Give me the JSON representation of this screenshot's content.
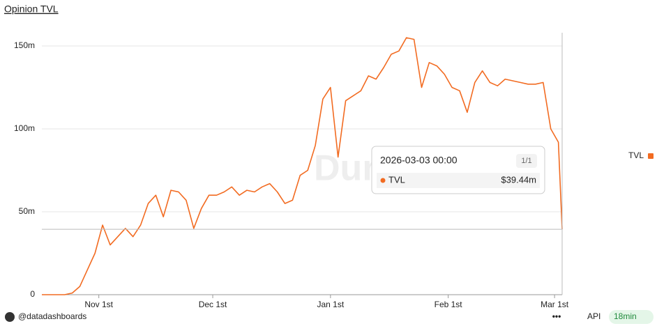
{
  "chart_data": {
    "type": "line",
    "title": "Opinion TVL",
    "watermark": "Dune",
    "x": [
      "2025-10-17",
      "2025-10-19",
      "2025-10-21",
      "2025-10-23",
      "2025-10-25",
      "2025-10-27",
      "2025-10-29",
      "2025-10-31",
      "2025-11-02",
      "2025-11-04",
      "2025-11-06",
      "2025-11-08",
      "2025-11-10",
      "2025-11-12",
      "2025-11-14",
      "2025-11-16",
      "2025-11-18",
      "2025-11-20",
      "2025-11-22",
      "2025-11-24",
      "2025-11-26",
      "2025-11-28",
      "2025-11-30",
      "2025-12-02",
      "2025-12-04",
      "2025-12-06",
      "2025-12-08",
      "2025-12-10",
      "2025-12-12",
      "2025-12-14",
      "2025-12-16",
      "2025-12-18",
      "2025-12-20",
      "2025-12-22",
      "2025-12-24",
      "2025-12-26",
      "2025-12-28",
      "2025-12-30",
      "2026-01-01",
      "2026-01-03",
      "2026-01-05",
      "2026-01-07",
      "2026-01-09",
      "2026-01-11",
      "2026-01-13",
      "2026-01-15",
      "2026-01-17",
      "2026-01-19",
      "2026-01-21",
      "2026-01-23",
      "2026-01-25",
      "2026-01-27",
      "2026-01-29",
      "2026-01-31",
      "2026-02-02",
      "2026-02-04",
      "2026-02-06",
      "2026-02-08",
      "2026-02-10",
      "2026-02-12",
      "2026-02-14",
      "2026-02-16",
      "2026-02-18",
      "2026-02-20",
      "2026-02-22",
      "2026-02-24",
      "2026-02-26",
      "2026-02-28",
      "2026-03-02",
      "2026-03-03"
    ],
    "series": [
      {
        "name": "TVL",
        "color": "#f26b21",
        "values": [
          0,
          0,
          0,
          0,
          1,
          5,
          15,
          25,
          42,
          30,
          35,
          40,
          35,
          42,
          55,
          60,
          47,
          63,
          62,
          57,
          40,
          52,
          60,
          60,
          62,
          65,
          60,
          63,
          62,
          65,
          67,
          62,
          55,
          57,
          72,
          75,
          90,
          118,
          125,
          83,
          117,
          120,
          123,
          132,
          130,
          137,
          145,
          147,
          155,
          154,
          125,
          140,
          138,
          133,
          125,
          123,
          110,
          128,
          135,
          128,
          126,
          130,
          129,
          128,
          127,
          127,
          128,
          100,
          92,
          39.44
        ]
      }
    ],
    "xlim": [
      "2025-10-17",
      "2026-03-03"
    ],
    "xticks": [
      {
        "value": "2025-11-01",
        "label": "Nov 1st"
      },
      {
        "value": "2025-12-01",
        "label": "Dec 1st"
      },
      {
        "value": "2026-01-01",
        "label": "Jan 1st"
      },
      {
        "value": "2026-02-01",
        "label": "Feb 1st"
      },
      {
        "value": "2026-03-01",
        "label": "Mar 1st"
      }
    ],
    "ylim": [
      0,
      158
    ],
    "yticks": [
      0,
      {
        "value": 50,
        "label": "50m"
      },
      {
        "value": 100,
        "label": "100m"
      },
      {
        "value": 150,
        "label": "150m"
      }
    ],
    "grid": true,
    "legend": "right",
    "tooltip": {
      "title": "2026-03-03 00:00",
      "count": "1/1",
      "value_label": "$39.44m"
    },
    "footer": {
      "user": "@datadashboards",
      "api": "API",
      "age": "18min"
    }
  }
}
